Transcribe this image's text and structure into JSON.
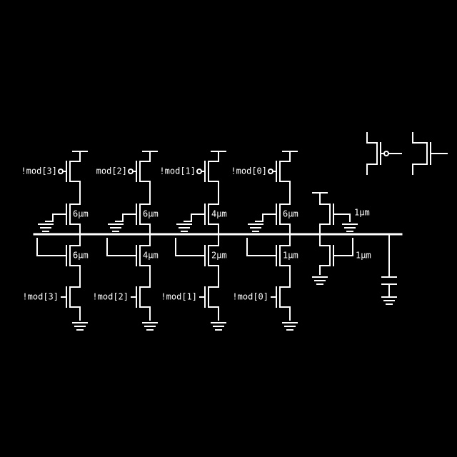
{
  "diagram": {
    "pmos_gate_labels": [
      "!mod[3]",
      "mod[2]",
      "!mod[1]",
      "!mod[0]"
    ],
    "pmos_width_labels": [
      "6µm",
      "6µm",
      "4µm",
      "6µm"
    ],
    "nmos_width_labels": [
      "6µm",
      "4µm",
      "2µm",
      "1µm"
    ],
    "nmos_gate_labels": [
      "!mod[3]",
      "!mod[2]",
      "!mod[1]",
      "!mod[0]"
    ],
    "extra_pmos_width_label": "1µm",
    "extra_nmos_width_label": "1µm"
  }
}
